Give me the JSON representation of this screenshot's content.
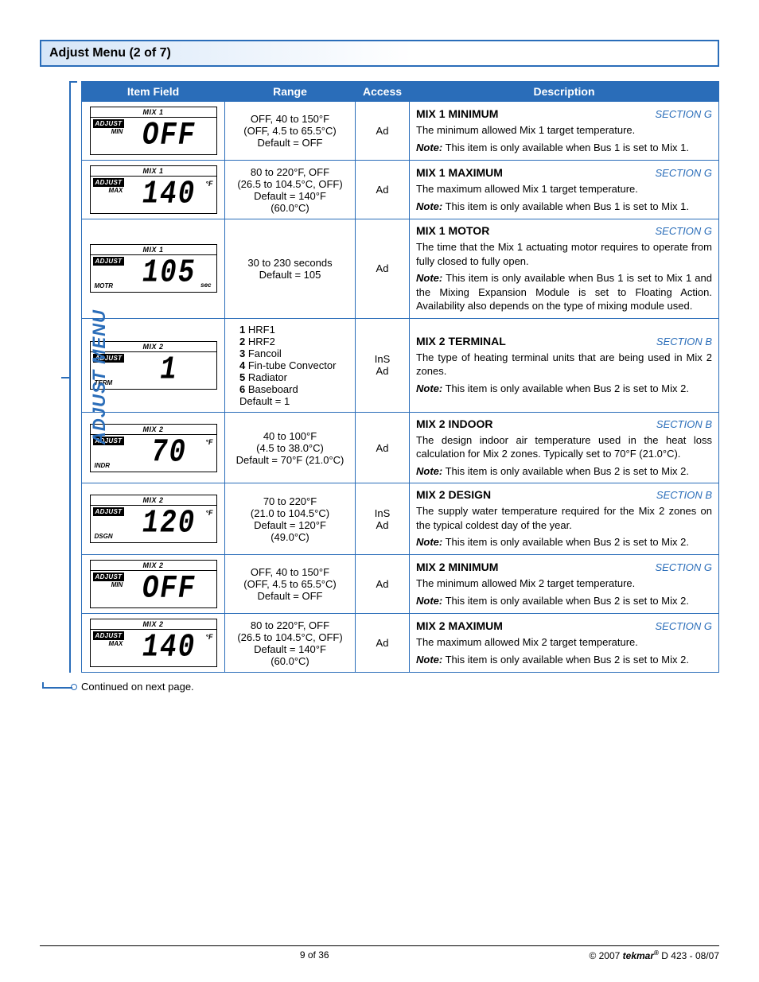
{
  "page": {
    "title": "Adjust Menu (2 of 7)",
    "side_label": "ADJUST MENU",
    "continued": "Continued on next page.",
    "footer_center": "9 of 36",
    "footer_right_pre": "© 2007 ",
    "footer_brand": "tekmar",
    "footer_right_post": " D 423 - 08/07"
  },
  "headers": {
    "item": "Item Field",
    "range": "Range",
    "access": "Access",
    "desc": "Description"
  },
  "rows": [
    {
      "lcd": {
        "top": "MIX 1",
        "tag": "MIN",
        "tag_pos": "under",
        "value": "OFF",
        "unit": ""
      },
      "range": "OFF, 40 to 150°F\n(OFF, 4.5 to 65.5°C)\nDefault = OFF",
      "access": "Ad",
      "title": "MIX 1 MINIMUM",
      "section": "SECTION G",
      "desc": "The minimum allowed Mix 1 target temperature.",
      "note": "This item is only available when Bus 1 is set to Mix 1."
    },
    {
      "lcd": {
        "top": "MIX 1",
        "tag": "MAX",
        "tag_pos": "under",
        "value": "140",
        "unit": "°F"
      },
      "range": "80 to 220°F, OFF\n(26.5 to 104.5°C, OFF)\nDefault = 140°F\n(60.0°C)",
      "access": "Ad",
      "title": "MIX 1 MAXIMUM",
      "section": "SECTION G",
      "desc": "The maximum allowed Mix 1 target temperature.",
      "note": "This item is only available when Bus 1 is set to Mix 1."
    },
    {
      "lcd": {
        "top": "MIX 1",
        "tag": "MOTR",
        "tag_pos": "bottom",
        "value": "105",
        "unit": "",
        "sub": "sec"
      },
      "range": "30 to 230 seconds\nDefault = 105",
      "access": "Ad",
      "title": "MIX 1 MOTOR",
      "section": "SECTION G",
      "desc": "The time that the Mix 1 actuating motor requires to operate from fully closed to fully open.",
      "note": "This item is only available when Bus 1 is set to Mix 1 and the Mixing Expansion Module is set to Floating Action. Availability also depends on the type of mixing module used."
    },
    {
      "lcd": {
        "top": "MIX  2",
        "tag": "TERM",
        "tag_pos": "bottom",
        "value": "1",
        "unit": ""
      },
      "range_list": [
        {
          "n": "1",
          "t": "HRF1"
        },
        {
          "n": "2",
          "t": "HRF2"
        },
        {
          "n": "3",
          "t": "Fancoil"
        },
        {
          "n": "4",
          "t": "Fin-tube Convector"
        },
        {
          "n": "5",
          "t": "Radiator"
        },
        {
          "n": "6",
          "t": "Baseboard"
        }
      ],
      "range_default": "Default = 1",
      "access": "InS\nAd",
      "title": "MIX 2 TERMINAL",
      "section": "SECTION B",
      "desc": "The type of heating terminal units that are being used in Mix 2 zones.",
      "note": "This item is only available when Bus 2 is set to Mix 2."
    },
    {
      "lcd": {
        "top": "MIX  2",
        "tag": "INDR",
        "tag_pos": "bottom",
        "value": "70",
        "unit": "°F"
      },
      "range": "40 to 100°F\n(4.5 to 38.0°C)\nDefault = 70°F (21.0°C)",
      "access": "Ad",
      "title": "MIX 2 INDOOR",
      "section": "SECTION B",
      "desc": "The design indoor air temperature used in the heat loss calculation for Mix 2 zones. Typically set to 70°F (21.0°C).",
      "note": "This item is only available when Bus 2 is set to Mix 2."
    },
    {
      "lcd": {
        "top": "MIX  2",
        "tag": "DSGN",
        "tag_pos": "bottom",
        "value": "120",
        "unit": "°F"
      },
      "range": "70 to 220°F\n(21.0 to 104.5°C)\nDefault = 120°F\n(49.0°C)",
      "access": "InS\nAd",
      "title": "MIX 2 DESIGN",
      "section": "SECTION B",
      "desc": "The supply water temperature required for the Mix 2 zones on the typical coldest day of the year.",
      "note": "This item is only available when Bus 2 is set to Mix 2."
    },
    {
      "lcd": {
        "top": "MIX  2",
        "tag": "MIN",
        "tag_pos": "under",
        "value": "OFF",
        "unit": ""
      },
      "range": "OFF, 40 to 150°F\n(OFF, 4.5 to 65.5°C)\nDefault = OFF",
      "access": "Ad",
      "title": "MIX 2 MINIMUM",
      "section": "SECTION G",
      "desc": "The minimum allowed Mix 2 target temperature.",
      "note": "This item is only available when Bus 2 is set to Mix 2."
    },
    {
      "lcd": {
        "top": "MIX  2",
        "tag": "MAX",
        "tag_pos": "under",
        "value": "140",
        "unit": "°F"
      },
      "range": "80 to 220°F, OFF\n(26.5 to 104.5°C, OFF)\nDefault = 140°F\n(60.0°C)",
      "access": "Ad",
      "title": "MIX 2 MAXIMUM",
      "section": "SECTION G",
      "desc": "The maximum allowed Mix 2 target temperature.",
      "note": "This item is only available when Bus 2 is set to Mix 2."
    }
  ]
}
